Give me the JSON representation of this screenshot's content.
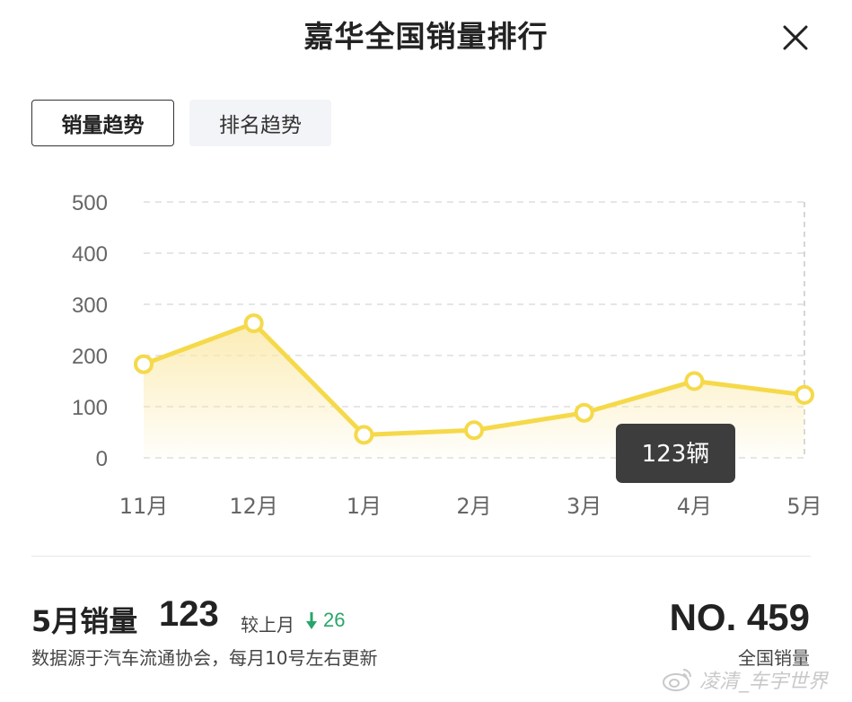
{
  "header": {
    "title": "嘉华全国销量排行"
  },
  "tabs": [
    {
      "label": "销量趋势",
      "active": true
    },
    {
      "label": "排名趋势",
      "active": false
    }
  ],
  "chart_data": {
    "type": "line",
    "categories": [
      "11月",
      "12月",
      "1月",
      "2月",
      "3月",
      "4月",
      "5月"
    ],
    "values": [
      183,
      263,
      45,
      54,
      88,
      150,
      123
    ],
    "ylim": [
      0,
      500
    ],
    "yticks": [
      "0",
      "100",
      "200",
      "300",
      "400",
      "500"
    ],
    "grid": true,
    "line_color": "#f5d94a",
    "fill_color": "#fdf3c6",
    "tooltip": {
      "category": "5月",
      "text": "123辆"
    }
  },
  "summary": {
    "month_label": "5月销量",
    "month_value": "123",
    "compare_label": "较上月",
    "compare_value": "26",
    "compare_color": "#2aa56a",
    "source_note": "数据源于汽车流通协会，每月10号左右更新",
    "rank_value": "NO. 459",
    "rank_label": "全国销量"
  },
  "watermark": {
    "text": "凌清_车宇世界",
    "icon": "weibo-icon"
  }
}
